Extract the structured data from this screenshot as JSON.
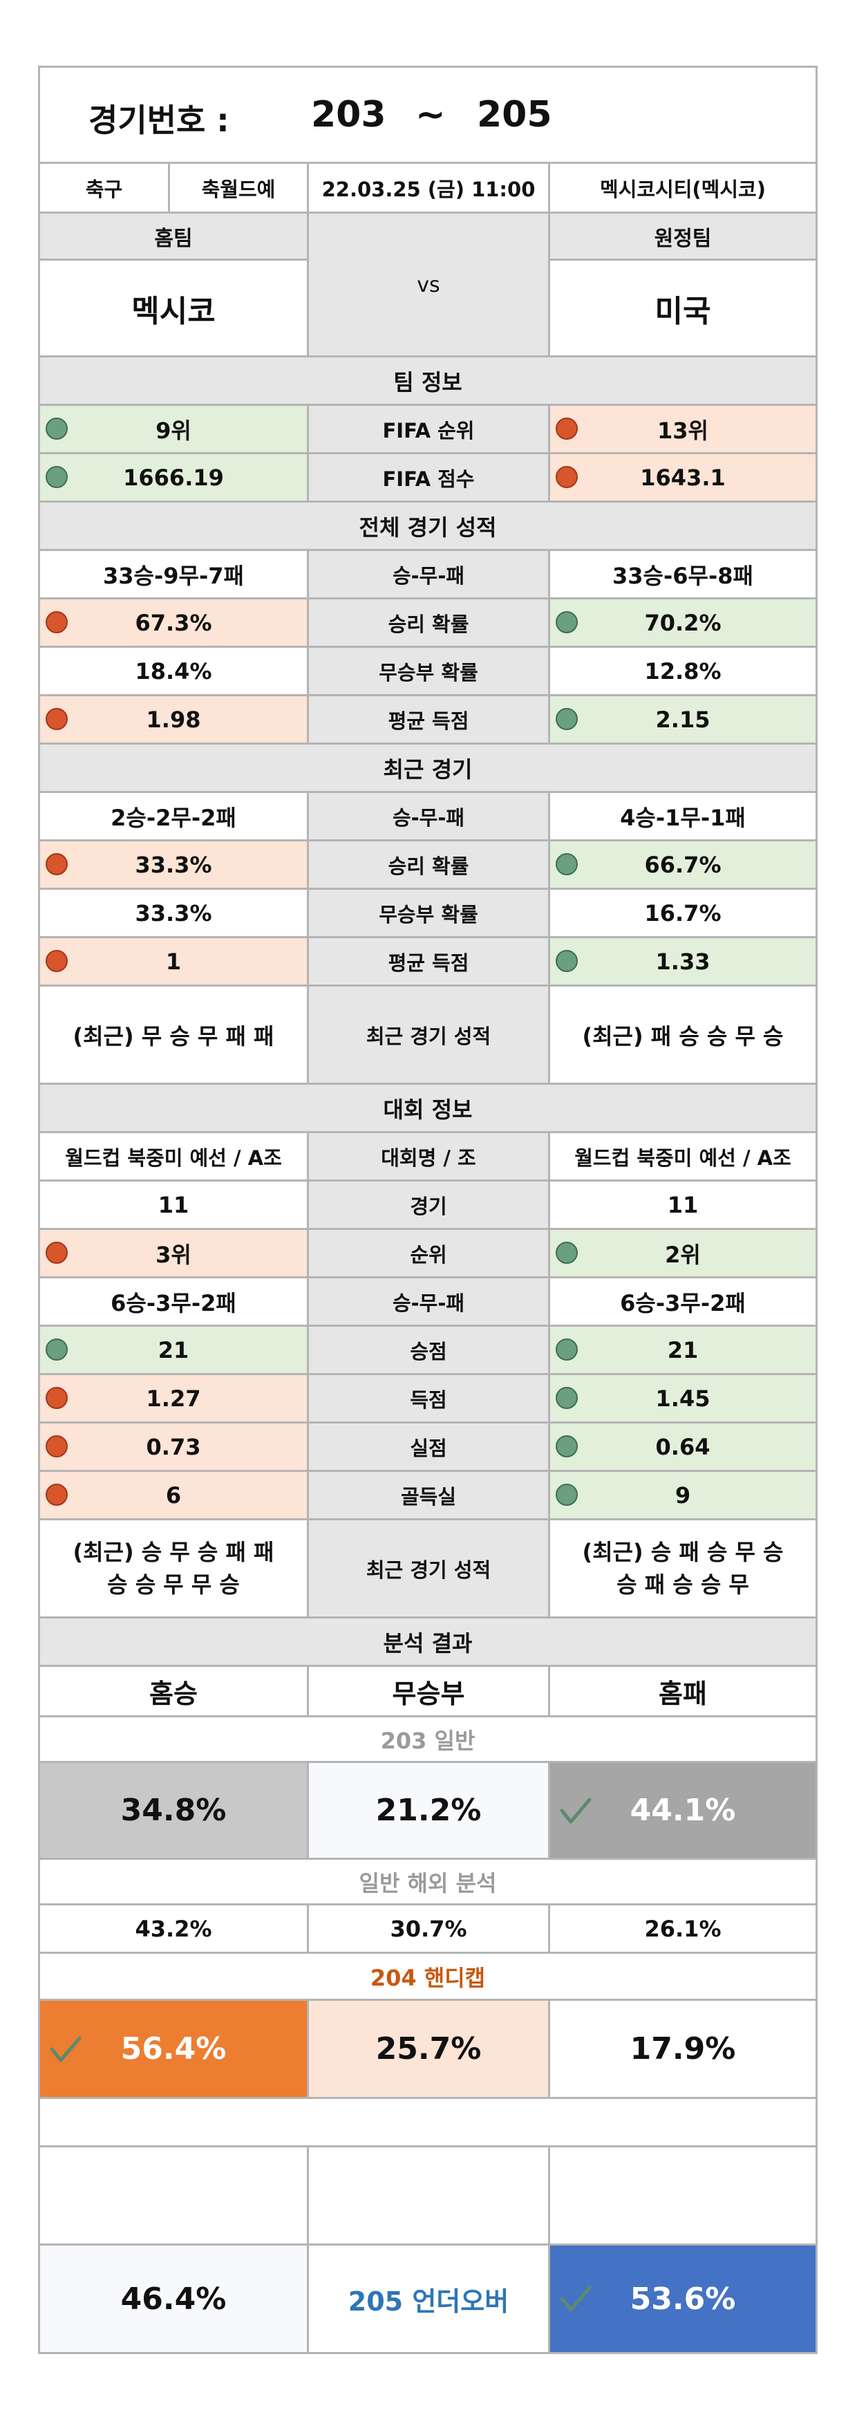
{
  "header": {
    "label": "경기번호 :",
    "from": "203",
    "tilde": "~",
    "to": "205"
  },
  "match": {
    "sport": "축구",
    "league": "축월드예",
    "datetime": "22.03.25 (금) 11:00",
    "venue": "멕시코시티(멕시코)"
  },
  "teams": {
    "home_label": "홈팀",
    "away_label": "원정팀",
    "vs": "vs",
    "home": "멕시코",
    "away": "미국"
  },
  "colors": {
    "green_bg": "#e2efda",
    "pink_bg": "#fce4d6",
    "gray_bg": "#e6e6e6",
    "good_dot": "#6a9f80",
    "bad_dot": "#d9552c",
    "orange": "#ed7d31",
    "blue": "#4472c4",
    "dark_gray": "#a6a6a6",
    "light_gray": "#c8c8c8"
  },
  "team_info": {
    "title": "팀 정보",
    "rank": {
      "home": "9위",
      "label": "FIFA 순위",
      "away": "13위"
    },
    "points": {
      "home": "1666.19",
      "label": "FIFA 점수",
      "away": "1643.1"
    }
  },
  "overall": {
    "title": "전체 경기 성적",
    "record": {
      "home": "33승-9무-7패",
      "label": "승-무-패",
      "away": "33승-6무-8패"
    },
    "win": {
      "home": "67.3%",
      "label": "승리 확률",
      "away": "70.2%"
    },
    "draw": {
      "home": "18.4%",
      "label": "무승부 확률",
      "away": "12.8%"
    },
    "goals": {
      "home": "1.98",
      "label": "평균 득점",
      "away": "2.15"
    }
  },
  "recent": {
    "title": "최근 경기",
    "record": {
      "home": "2승-2무-2패",
      "label": "승-무-패",
      "away": "4승-1무-1패"
    },
    "win": {
      "home": "33.3%",
      "label": "승리 확률",
      "away": "66.7%"
    },
    "draw": {
      "home": "33.3%",
      "label": "무승부 확률",
      "away": "16.7%"
    },
    "goals": {
      "home": "1",
      "label": "평균 득점",
      "away": "1.33"
    },
    "form": {
      "home": "(최근) 무 승 무 패 패",
      "label": "최근 경기 성적",
      "away": "(최근) 패 승 승 무 승"
    }
  },
  "tournament": {
    "title": "대회 정보",
    "name": {
      "home": "월드컵 북중미 예선 / A조",
      "label": "대회명 / 조",
      "away": "월드컵 북중미 예선 / A조"
    },
    "played": {
      "home": "11",
      "label": "경기",
      "away": "11"
    },
    "rank": {
      "home": "3위",
      "label": "순위",
      "away": "2위"
    },
    "record": {
      "home": "6승-3무-2패",
      "label": "승-무-패",
      "away": "6승-3무-2패"
    },
    "points": {
      "home": "21",
      "label": "승점",
      "away": "21"
    },
    "scored": {
      "home": "1.27",
      "label": "득점",
      "away": "1.45"
    },
    "conceded": {
      "home": "0.73",
      "label": "실점",
      "away": "0.64"
    },
    "diff": {
      "home": "6",
      "label": "골득실",
      "away": "9"
    },
    "form": {
      "home_line1": "(최근) 승 무 승 패 패",
      "home_line2": "승 승 무 무 승",
      "label": "최근 경기 성적",
      "away_line1": "(최근) 승 패 승 무 승",
      "away_line2": "승 패 승 승 무"
    }
  },
  "analysis": {
    "title": "분석 결과",
    "cols": {
      "home": "홈승",
      "draw": "무승부",
      "away": "홈패"
    },
    "general_label": "203 일반",
    "general": {
      "home": "34.8%",
      "draw": "21.2%",
      "away": "44.1%"
    },
    "overseas_label": "일반 해외 분석",
    "overseas": {
      "home": "43.2%",
      "draw": "30.7%",
      "away": "26.1%"
    },
    "handicap_label": "204 핸디캡",
    "handicap": {
      "home": "56.4%",
      "draw": "25.7%",
      "away": "17.9%"
    },
    "underover": {
      "under": "46.4%",
      "label": "205 언더오버",
      "over": "53.6%"
    }
  }
}
